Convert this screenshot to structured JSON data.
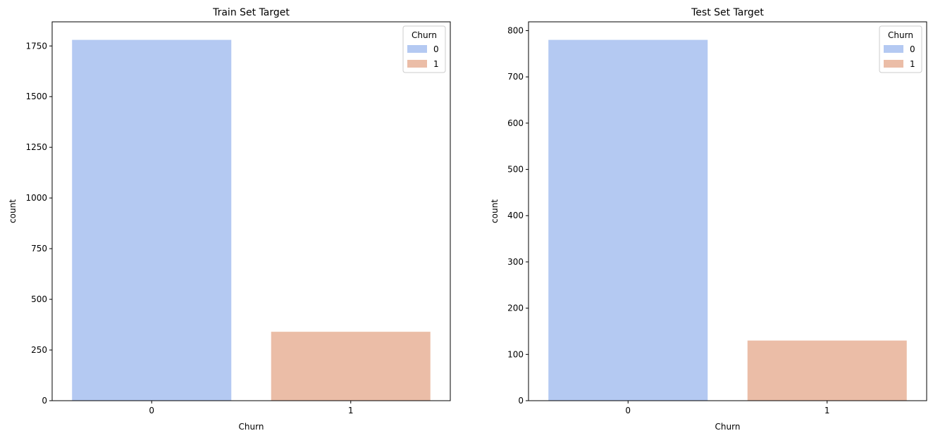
{
  "colors": {
    "class_0": "#b4c9f2",
    "class_1": "#ebbda7",
    "axis": "#000000",
    "background": "#ffffff"
  },
  "chart_data": [
    {
      "type": "bar",
      "title": "Train Set Target",
      "xlabel": "Churn",
      "ylabel": "count",
      "categories": [
        "0",
        "1"
      ],
      "values": [
        1780,
        340
      ],
      "ylim": [
        0,
        1869
      ],
      "yticks": [
        0,
        250,
        500,
        750,
        1000,
        1250,
        1500,
        1750
      ],
      "grid": false,
      "legend": {
        "title": "Churn",
        "placement": "top-right",
        "entries": [
          "0",
          "1"
        ]
      }
    },
    {
      "type": "bar",
      "title": "Test Set Target",
      "xlabel": "Churn",
      "ylabel": "count",
      "categories": [
        "0",
        "1"
      ],
      "values": [
        780,
        130
      ],
      "ylim": [
        0,
        819
      ],
      "yticks": [
        0,
        100,
        200,
        300,
        400,
        500,
        600,
        700,
        800
      ],
      "grid": false,
      "legend": {
        "title": "Churn",
        "placement": "top-right",
        "entries": [
          "0",
          "1"
        ]
      }
    }
  ]
}
